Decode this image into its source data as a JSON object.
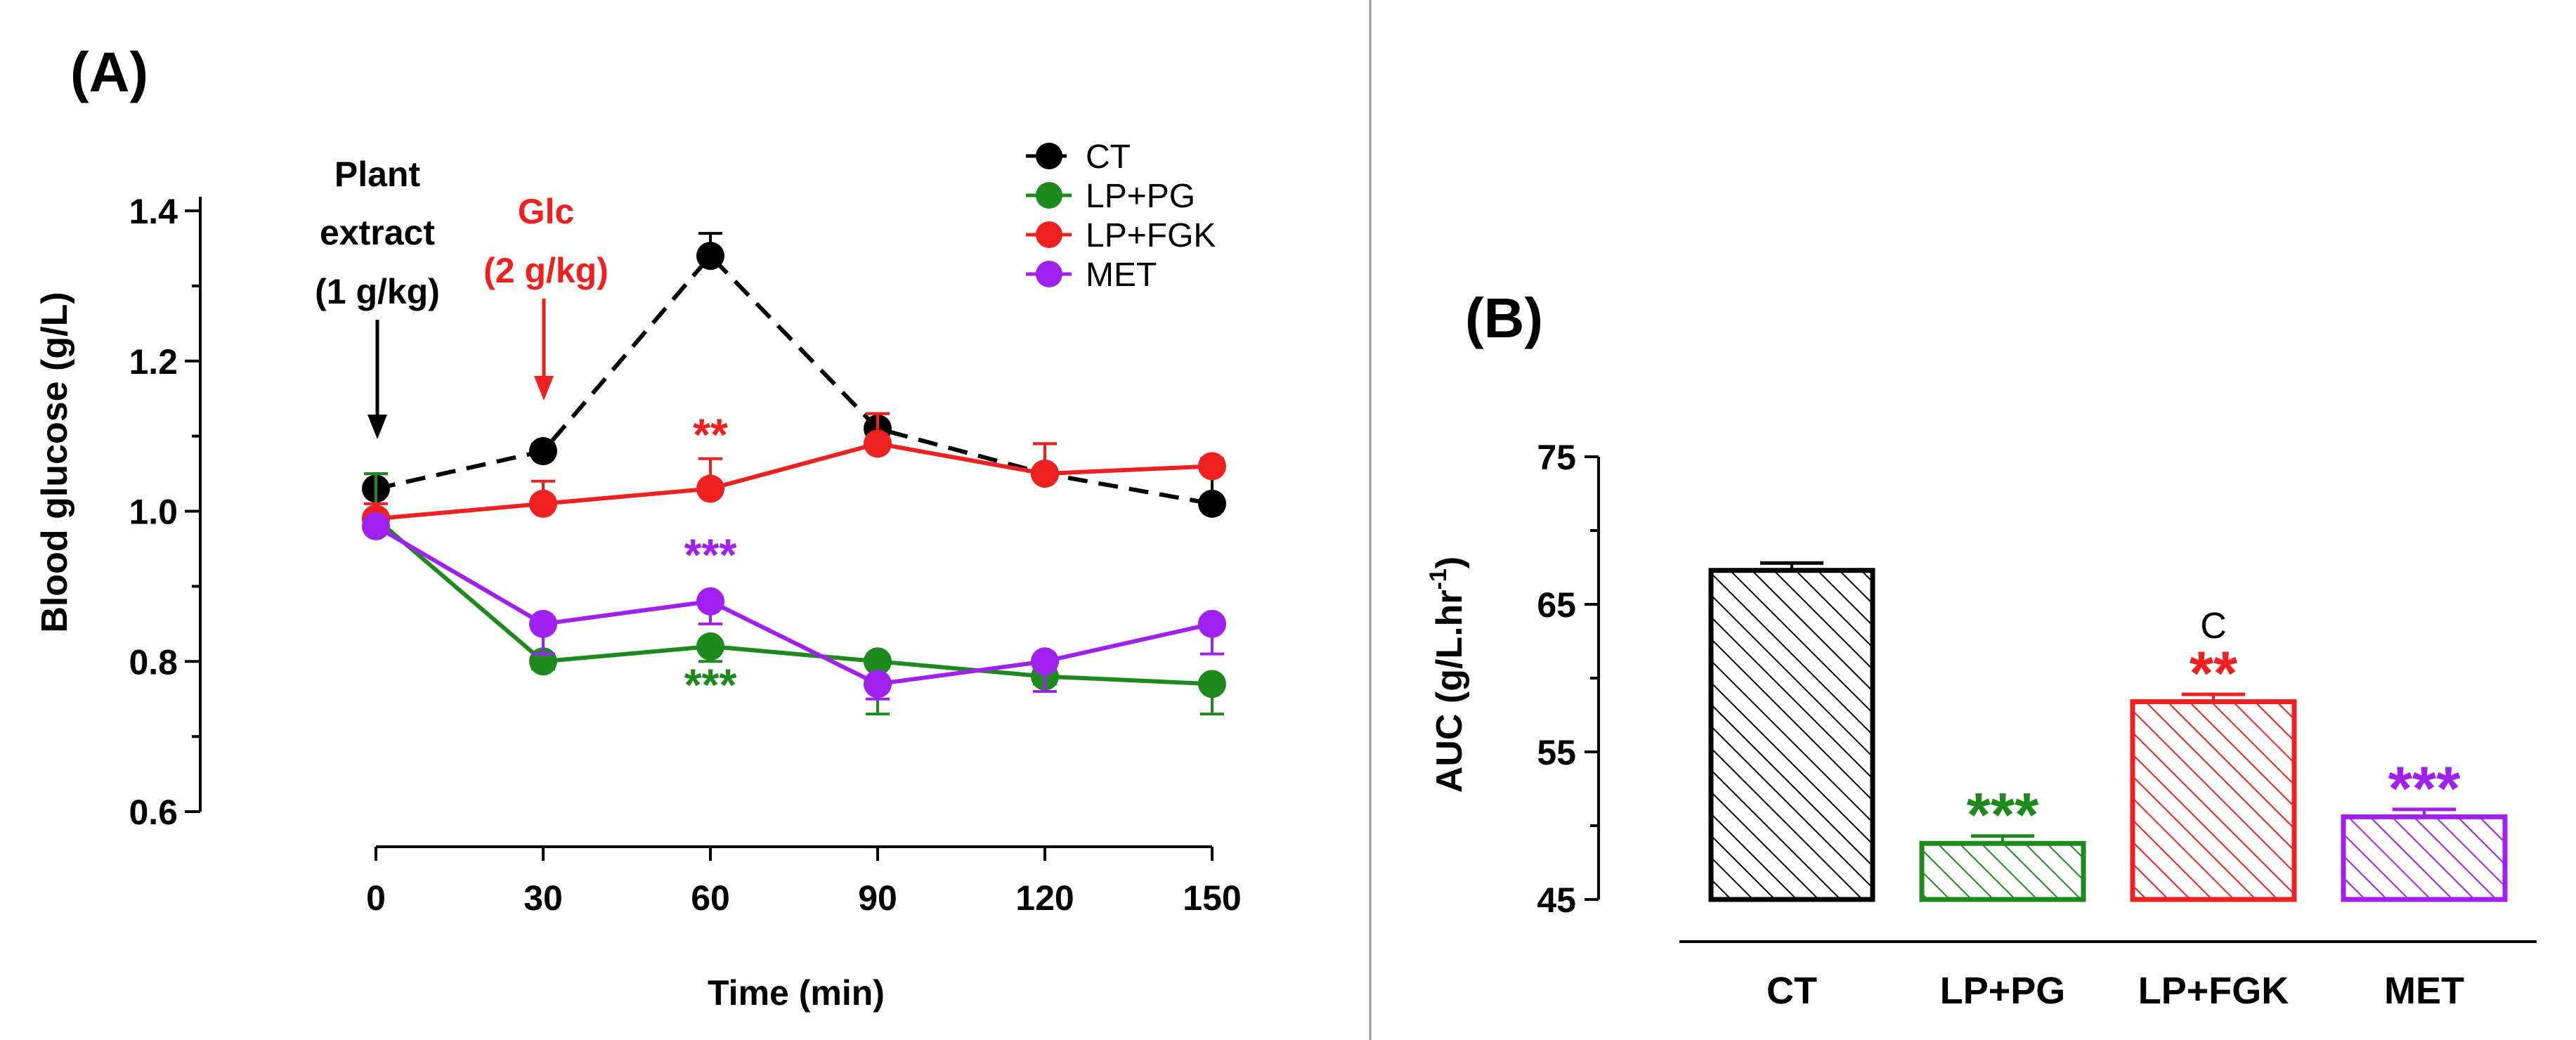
{
  "panel_a": {
    "label": "(A)",
    "annotations": {
      "plant_line1": "Plant",
      "plant_line2": "extract",
      "plant_line3": "(1 g/kg)",
      "glc_line1": "Glc",
      "glc_line2": "(2 g/kg)"
    }
  },
  "panel_b": {
    "label": "(B)"
  },
  "colors": {
    "CT": "#000000",
    "LP+PG": "#1e8a1e",
    "LP+FGK": "#ee2020",
    "MET": "#a020f0",
    "divider": "#999999"
  },
  "chart_data": [
    {
      "type": "line",
      "title": "",
      "xlabel": "Time (min)",
      "ylabel": "Blood glucose (g/L)",
      "x": [
        0,
        30,
        60,
        90,
        120,
        150
      ],
      "x_tick_labels": [
        "0",
        "30",
        "60",
        "90",
        "120",
        "150"
      ],
      "ylim": [
        0.6,
        1.4
      ],
      "y_ticks": [
        0.6,
        0.8,
        1.0,
        1.2,
        1.4
      ],
      "y_tick_labels": [
        "0.6",
        "0.8",
        "1.0",
        "1.2",
        "1.4"
      ],
      "legend_position": "top-right",
      "series": [
        {
          "name": "CT",
          "style": "dashed",
          "values": [
            1.03,
            1.08,
            1.34,
            1.11,
            1.05,
            1.01
          ],
          "err": [
            0.02,
            0.01,
            0.03,
            0.02,
            0.04,
            0.06
          ]
        },
        {
          "name": "LP+PG",
          "style": "solid",
          "values": [
            0.99,
            0.8,
            0.82,
            0.8,
            0.78,
            0.77
          ],
          "err": [
            0.06,
            0.01,
            0.02,
            0.07,
            0.01,
            0.04
          ]
        },
        {
          "name": "LP+FGK",
          "style": "solid",
          "values": [
            0.99,
            1.01,
            1.03,
            1.09,
            1.05,
            1.06
          ],
          "err": [
            0.02,
            0.03,
            0.04,
            0.04,
            0.04,
            0.01
          ]
        },
        {
          "name": "MET",
          "style": "solid",
          "values": [
            0.98,
            0.85,
            0.88,
            0.77,
            0.8,
            0.85
          ],
          "err": [
            0.01,
            0.04,
            0.03,
            0.02,
            0.04,
            0.04
          ]
        }
      ],
      "significance": [
        {
          "series": "LP+FGK",
          "x": 60,
          "label": "**"
        },
        {
          "series": "MET",
          "x": 60,
          "label": "***"
        },
        {
          "series": "LP+PG",
          "x": 60,
          "label": "***"
        }
      ]
    },
    {
      "type": "bar",
      "title": "",
      "xlabel": "",
      "ylabel_main": "AUC (g/L.hr",
      "ylabel_sup": "-1",
      "ylabel_close": ")",
      "categories": [
        "CT",
        "LP+PG",
        "LP+FGK",
        "MET"
      ],
      "values": [
        67.3,
        48.8,
        58.4,
        50.6
      ],
      "err": [
        0.5,
        0.5,
        0.5,
        0.5
      ],
      "ylim": [
        45,
        75
      ],
      "y_ticks": [
        45,
        55,
        65,
        75
      ],
      "y_tick_labels": [
        "45",
        "55",
        "65",
        "75"
      ],
      "fill": "hatched",
      "significance": [
        "",
        "***",
        "**",
        "***"
      ],
      "letters": [
        "",
        "",
        "C",
        ""
      ]
    }
  ]
}
